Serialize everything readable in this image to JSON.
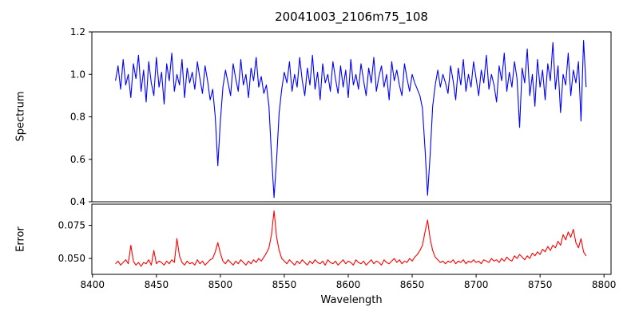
{
  "figure": {
    "title": "20041003_2106m75_108",
    "xlabel": "Wavelength"
  },
  "chart_data": [
    {
      "type": "line",
      "name": "spectrum",
      "title": "20041003_2106m75_108",
      "ylabel": "Spectrum",
      "color": "#0000ff",
      "xlim": [
        8399.5,
        8805.5
      ],
      "ylim": [
        0.4,
        1.2
      ],
      "x_start": 8418,
      "x_step": 2,
      "ytick_values": [
        0.4,
        0.6,
        0.8,
        1.0,
        1.2
      ],
      "ytick_labels": [
        "0.4",
        "0.6",
        "0.8",
        "1.0",
        "1.2"
      ],
      "annotations": [
        "absorption dips near 8498, 8542 and 8662; noisy continuum near 1.0"
      ],
      "values": [
        0.97,
        1.04,
        0.93,
        1.07,
        0.95,
        1.0,
        0.89,
        1.05,
        0.98,
        1.09,
        0.92,
        1.02,
        0.87,
        1.06,
        0.96,
        0.9,
        1.08,
        0.94,
        1.01,
        0.86,
        1.05,
        0.97,
        1.1,
        0.92,
        1.0,
        0.95,
        1.07,
        0.89,
        1.03,
        0.96,
        1.01,
        0.93,
        1.06,
        0.98,
        0.91,
        1.04,
        0.97,
        0.88,
        0.93,
        0.8,
        0.57,
        0.78,
        0.94,
        1.02,
        0.96,
        0.9,
        1.05,
        0.98,
        0.92,
        1.07,
        0.95,
        1.0,
        0.89,
        1.03,
        0.97,
        1.08,
        0.94,
        0.99,
        0.91,
        0.95,
        0.85,
        0.62,
        0.42,
        0.6,
        0.82,
        0.93,
        1.01,
        0.96,
        1.06,
        0.92,
        1.0,
        0.94,
        1.08,
        0.97,
        0.9,
        1.03,
        0.95,
        1.09,
        0.93,
        1.01,
        0.88,
        1.05,
        0.96,
        1.0,
        0.92,
        1.06,
        0.98,
        0.91,
        1.04,
        0.94,
        1.02,
        0.89,
        1.07,
        0.95,
        1.0,
        0.93,
        1.05,
        0.97,
        0.9,
        1.03,
        0.96,
        1.08,
        0.92,
        0.99,
        1.04,
        0.94,
        1.0,
        0.88,
        1.06,
        0.97,
        1.02,
        0.95,
        0.9,
        1.05,
        0.98,
        0.92,
        1.0,
        0.96,
        0.93,
        0.9,
        0.84,
        0.65,
        0.43,
        0.62,
        0.85,
        0.95,
        1.02,
        0.94,
        1.0,
        0.96,
        0.91,
        1.04,
        0.97,
        0.88,
        1.03,
        0.95,
        1.07,
        0.92,
        1.0,
        0.94,
        1.06,
        0.98,
        0.9,
        1.02,
        0.96,
        1.09,
        0.93,
        1.0,
        0.95,
        0.87,
        1.04,
        0.97,
        1.1,
        0.92,
        1.01,
        0.94,
        1.06,
        0.98,
        0.75,
        1.03,
        0.96,
        1.12,
        0.9,
        1.0,
        0.85,
        1.07,
        0.94,
        1.02,
        0.88,
        1.05,
        0.97,
        1.15,
        0.93,
        1.04,
        0.82,
        1.0,
        0.95,
        1.1,
        0.9,
        1.02,
        0.96,
        1.06,
        0.78,
        1.16,
        0.94
      ]
    },
    {
      "type": "line",
      "name": "error",
      "ylabel": "Error",
      "xlabel": "Wavelength",
      "color": "#ff0000",
      "xlim": [
        8399.5,
        8805.5
      ],
      "ylim": [
        0.038,
        0.091
      ],
      "x_start": 8418,
      "x_step": 2,
      "ytick_values": [
        0.05,
        0.075
      ],
      "ytick_labels": [
        "0.050",
        "0.075"
      ],
      "xtick_values": [
        8400,
        8450,
        8500,
        8550,
        8600,
        8650,
        8700,
        8750,
        8800
      ],
      "xtick_labels": [
        "8400",
        "8450",
        "8500",
        "8550",
        "8600",
        "8650",
        "8700",
        "8750",
        "8800"
      ],
      "annotations": [
        "error spikes near 8430, 8466, 8498, 8542, 8662; rising toward 8760-8780"
      ],
      "values": [
        0.046,
        0.048,
        0.045,
        0.047,
        0.049,
        0.046,
        0.06,
        0.048,
        0.045,
        0.047,
        0.044,
        0.047,
        0.046,
        0.049,
        0.045,
        0.056,
        0.046,
        0.048,
        0.047,
        0.045,
        0.048,
        0.046,
        0.049,
        0.047,
        0.065,
        0.052,
        0.047,
        0.045,
        0.048,
        0.046,
        0.047,
        0.045,
        0.049,
        0.046,
        0.048,
        0.045,
        0.047,
        0.049,
        0.05,
        0.055,
        0.062,
        0.054,
        0.048,
        0.046,
        0.049,
        0.047,
        0.045,
        0.048,
        0.046,
        0.049,
        0.047,
        0.045,
        0.048,
        0.046,
        0.049,
        0.047,
        0.05,
        0.048,
        0.051,
        0.054,
        0.058,
        0.068,
        0.086,
        0.066,
        0.056,
        0.05,
        0.048,
        0.046,
        0.049,
        0.047,
        0.045,
        0.048,
        0.046,
        0.049,
        0.047,
        0.045,
        0.048,
        0.046,
        0.049,
        0.047,
        0.046,
        0.048,
        0.045,
        0.049,
        0.047,
        0.046,
        0.048,
        0.045,
        0.047,
        0.049,
        0.046,
        0.048,
        0.047,
        0.045,
        0.049,
        0.047,
        0.046,
        0.048,
        0.045,
        0.047,
        0.049,
        0.046,
        0.048,
        0.047,
        0.045,
        0.049,
        0.047,
        0.046,
        0.048,
        0.05,
        0.047,
        0.049,
        0.046,
        0.048,
        0.047,
        0.05,
        0.048,
        0.051,
        0.053,
        0.056,
        0.06,
        0.07,
        0.079,
        0.065,
        0.056,
        0.051,
        0.049,
        0.047,
        0.048,
        0.046,
        0.048,
        0.047,
        0.049,
        0.046,
        0.048,
        0.047,
        0.049,
        0.046,
        0.048,
        0.047,
        0.049,
        0.047,
        0.048,
        0.046,
        0.049,
        0.048,
        0.047,
        0.05,
        0.048,
        0.049,
        0.047,
        0.05,
        0.048,
        0.051,
        0.049,
        0.048,
        0.052,
        0.05,
        0.053,
        0.051,
        0.049,
        0.052,
        0.05,
        0.054,
        0.052,
        0.055,
        0.053,
        0.057,
        0.055,
        0.059,
        0.056,
        0.06,
        0.058,
        0.063,
        0.06,
        0.068,
        0.064,
        0.07,
        0.066,
        0.072,
        0.062,
        0.058,
        0.065,
        0.055,
        0.052
      ]
    }
  ]
}
